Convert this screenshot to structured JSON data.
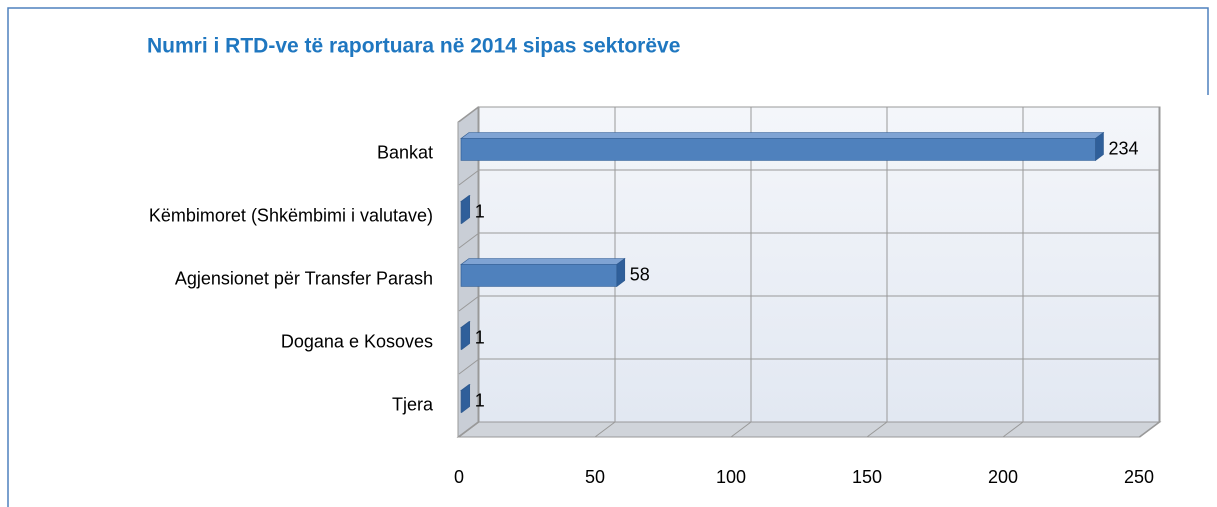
{
  "chart_data": {
    "type": "bar",
    "orientation": "horizontal",
    "title": "Numri i RTD-ve të raportuara në 2014 sipas sektorëve",
    "categories": [
      "Bankat",
      "Këmbimoret (Shkëmbimi i valutave)",
      "Agjensionet për Transfer Parash",
      "Dogana e Kosoves",
      "Tjera"
    ],
    "values": [
      234,
      1,
      58,
      1,
      1
    ],
    "color": "#4f81bd",
    "xlim": [
      0,
      250
    ],
    "xticks": [
      0,
      50,
      100,
      150,
      200,
      250
    ],
    "grid": true
  }
}
